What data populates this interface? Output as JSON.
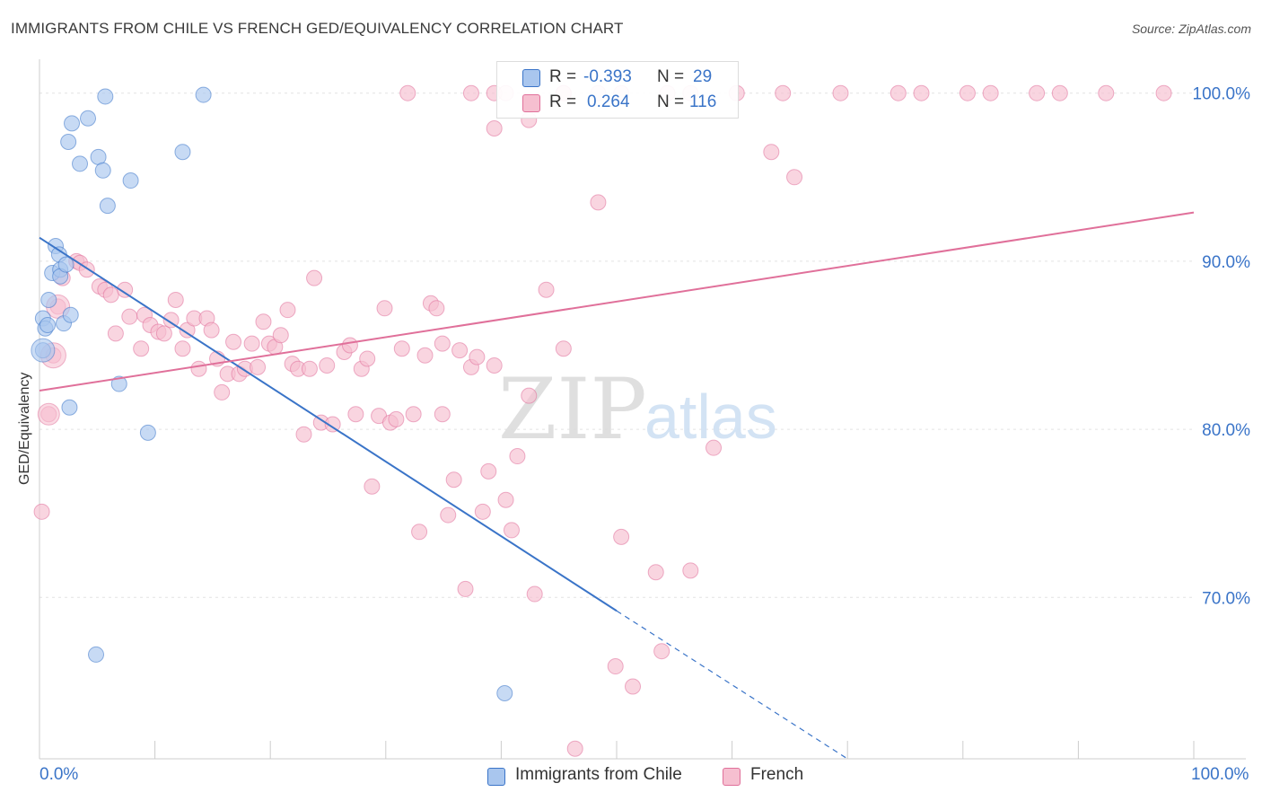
{
  "title": "IMMIGRANTS FROM CHILE VS FRENCH GED/EQUIVALENCY CORRELATION CHART",
  "source": "Source: ZipAtlas.com",
  "watermark": {
    "zip": "ZIP",
    "atlas": "atlas"
  },
  "colors": {
    "blue": "#3a74c8",
    "blue_fill": "#a9c6ee",
    "pink": "#e0709a",
    "pink_fill": "#f6bfd0",
    "grid": "#e3e3e3"
  },
  "legend": {
    "rows": [
      {
        "r_label": "R = ",
        "r_value": "-0.393",
        "n_label": "N = ",
        "n_value": "29",
        "swatch": "blue"
      },
      {
        "r_label": "R = ",
        "r_value": "0.264",
        "n_label": "N = ",
        "n_value": "116",
        "swatch": "pink"
      }
    ]
  },
  "bottom_legend": [
    {
      "label": "Immigrants from Chile",
      "swatch": "blue"
    },
    {
      "label": "French",
      "swatch": "pink"
    }
  ],
  "chart_data": {
    "type": "scatter",
    "title": "IMMIGRANTS FROM CHILE VS FRENCH GED/EQUIVALENCY CORRELATION CHART",
    "xlabel": "",
    "ylabel": "GED/Equivalency",
    "xlim": [
      0,
      100
    ],
    "ylim": [
      60.4,
      101.8
    ],
    "x_tick_labels": [
      "0.0%",
      "100.0%"
    ],
    "y_ticks": [
      {
        "value": 70,
        "label": "70.0%"
      },
      {
        "value": 80,
        "label": "80.0%"
      },
      {
        "value": 90,
        "label": "90.0%"
      },
      {
        "value": 100,
        "label": "100.0%"
      }
    ],
    "series": [
      {
        "name": "Immigrants from Chile",
        "color": "blue",
        "points": [
          [
            0.3,
            86.6
          ],
          [
            0.5,
            86
          ],
          [
            0.7,
            86.2
          ],
          [
            0.3,
            84.7
          ],
          [
            0.8,
            87.7
          ],
          [
            1.1,
            89.3
          ],
          [
            1.4,
            90.9
          ],
          [
            1.7,
            90.4
          ],
          [
            1.8,
            89.5
          ],
          [
            1.8,
            89.1
          ],
          [
            2.1,
            86.3
          ],
          [
            2.7,
            86.8
          ],
          [
            2.6,
            81.3
          ],
          [
            2.5,
            97.1
          ],
          [
            2.8,
            98.2
          ],
          [
            3.5,
            95.8
          ],
          [
            4.2,
            98.5
          ],
          [
            5.1,
            96.2
          ],
          [
            5.5,
            95.4
          ],
          [
            5.7,
            99.8
          ],
          [
            5.9,
            93.3
          ],
          [
            6.9,
            82.7
          ],
          [
            7.9,
            94.8
          ],
          [
            9.4,
            79.8
          ],
          [
            12.4,
            96.5
          ],
          [
            14.2,
            99.9
          ],
          [
            4.9,
            66.6
          ],
          [
            40.3,
            64.3
          ],
          [
            2.3,
            89.8
          ]
        ],
        "trendline": {
          "x0": 0,
          "y0": 91.4,
          "x1": 50,
          "y1": 69.2,
          "dashed_to_x": 70,
          "dashed_to_y": 60.4
        }
      },
      {
        "name": "French",
        "color": "pink",
        "points": [
          [
            0.2,
            75.1
          ],
          [
            0.8,
            80.9
          ],
          [
            1.2,
            84.4
          ],
          [
            1.6,
            87.3
          ],
          [
            2.0,
            89.0
          ],
          [
            3.2,
            90.0
          ],
          [
            3.5,
            89.9
          ],
          [
            4.1,
            89.5
          ],
          [
            5.2,
            88.5
          ],
          [
            5.7,
            88.3
          ],
          [
            6.2,
            88.0
          ],
          [
            6.6,
            85.7
          ],
          [
            7.4,
            88.3
          ],
          [
            7.8,
            86.7
          ],
          [
            8.8,
            84.8
          ],
          [
            9.1,
            86.8
          ],
          [
            9.6,
            86.2
          ],
          [
            10.3,
            85.8
          ],
          [
            10.8,
            85.7
          ],
          [
            11.4,
            86.5
          ],
          [
            11.8,
            87.7
          ],
          [
            12.4,
            84.8
          ],
          [
            12.8,
            85.9
          ],
          [
            13.4,
            86.6
          ],
          [
            13.8,
            83.6
          ],
          [
            14.5,
            86.6
          ],
          [
            14.9,
            85.9
          ],
          [
            15.4,
            84.2
          ],
          [
            15.8,
            82.2
          ],
          [
            16.3,
            83.3
          ],
          [
            16.8,
            85.2
          ],
          [
            17.3,
            83.3
          ],
          [
            17.8,
            83.6
          ],
          [
            18.4,
            85.1
          ],
          [
            18.9,
            83.7
          ],
          [
            19.4,
            86.4
          ],
          [
            19.9,
            85.1
          ],
          [
            20.4,
            84.9
          ],
          [
            20.9,
            85.6
          ],
          [
            21.5,
            87.1
          ],
          [
            21.9,
            83.9
          ],
          [
            22.4,
            83.6
          ],
          [
            22.9,
            79.7
          ],
          [
            23.4,
            83.6
          ],
          [
            23.8,
            89.0
          ],
          [
            24.4,
            80.4
          ],
          [
            24.9,
            83.8
          ],
          [
            25.4,
            80.3
          ],
          [
            26.4,
            84.6
          ],
          [
            26.9,
            85.0
          ],
          [
            27.4,
            80.9
          ],
          [
            27.9,
            83.6
          ],
          [
            28.4,
            84.2
          ],
          [
            28.8,
            76.6
          ],
          [
            29.4,
            80.8
          ],
          [
            29.9,
            87.2
          ],
          [
            30.4,
            80.4
          ],
          [
            30.9,
            80.6
          ],
          [
            31.4,
            84.8
          ],
          [
            32.4,
            80.9
          ],
          [
            32.9,
            73.9
          ],
          [
            33.4,
            84.4
          ],
          [
            33.9,
            87.5
          ],
          [
            34.4,
            87.2
          ],
          [
            34.9,
            85.1
          ],
          [
            34.9,
            80.9
          ],
          [
            35.4,
            74.9
          ],
          [
            35.9,
            77.0
          ],
          [
            36.4,
            84.7
          ],
          [
            36.9,
            70.5
          ],
          [
            37.4,
            83.7
          ],
          [
            37.9,
            84.3
          ],
          [
            38.4,
            75.1
          ],
          [
            38.9,
            77.5
          ],
          [
            39.4,
            83.8
          ],
          [
            40.4,
            75.8
          ],
          [
            40.9,
            74.0
          ],
          [
            41.4,
            78.4
          ],
          [
            42.4,
            82.0
          ],
          [
            42.9,
            70.2
          ],
          [
            43.9,
            88.3
          ],
          [
            45.4,
            84.8
          ],
          [
            46.4,
            61.0
          ],
          [
            48.4,
            93.5
          ],
          [
            49.9,
            65.9
          ],
          [
            50.4,
            73.6
          ],
          [
            51.4,
            64.7
          ],
          [
            53.4,
            71.5
          ],
          [
            53.9,
            66.8
          ],
          [
            56.4,
            71.6
          ],
          [
            58.4,
            78.9
          ],
          [
            63.4,
            96.5
          ],
          [
            65.4,
            95.0
          ],
          [
            31.9,
            100
          ],
          [
            39.4,
            100
          ],
          [
            45.4,
            100
          ],
          [
            45.4,
            100
          ],
          [
            48.4,
            100
          ],
          [
            50.4,
            100
          ],
          [
            54.4,
            100
          ],
          [
            56.4,
            100
          ],
          [
            60.4,
            100
          ],
          [
            64.4,
            100
          ],
          [
            74.4,
            100
          ],
          [
            76.4,
            100
          ],
          [
            69.4,
            100
          ],
          [
            97.4,
            100
          ],
          [
            80.4,
            100
          ],
          [
            82.4,
            100
          ],
          [
            86.4,
            100
          ],
          [
            88.4,
            100
          ],
          [
            92.4,
            100
          ],
          [
            37.4,
            100
          ],
          [
            39.4,
            97.9
          ],
          [
            42.4,
            98.4
          ],
          [
            40.4,
            100
          ]
        ],
        "trendline": {
          "x0": 0,
          "y0": 82.3,
          "x1": 100,
          "y1": 92.9
        }
      }
    ]
  }
}
